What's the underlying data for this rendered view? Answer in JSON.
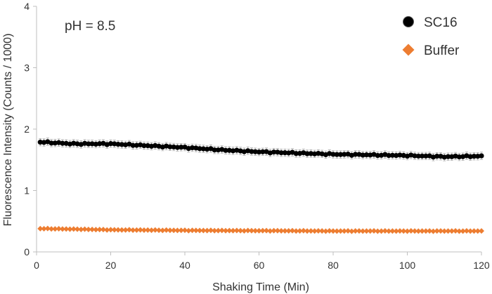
{
  "chart_data": {
    "type": "scatter",
    "annotation": "pH = 8.5",
    "xlabel": "Shaking Time (Min)",
    "ylabel": "Fluorescence Intensity (Counts / 1000)",
    "xlim": [
      0,
      120
    ],
    "ylim": [
      0,
      4
    ],
    "x_ticks": [
      "0",
      "20",
      "40",
      "60",
      "80",
      "100",
      "120"
    ],
    "y_ticks": [
      "0",
      "1",
      "2",
      "3",
      "4"
    ],
    "grid": false,
    "legend_position": "top-right",
    "sample_interval_min": 1,
    "series": [
      {
        "name": "SC16",
        "marker": "circle",
        "color": "#000000",
        "error_bars": true,
        "x_start": 1,
        "x_end": 120,
        "anchors": [
          [
            1,
            1.79
          ],
          [
            10,
            1.76
          ],
          [
            20,
            1.76
          ],
          [
            30,
            1.73
          ],
          [
            40,
            1.7
          ],
          [
            50,
            1.66
          ],
          [
            60,
            1.63
          ],
          [
            70,
            1.61
          ],
          [
            80,
            1.59
          ],
          [
            90,
            1.58
          ],
          [
            100,
            1.57
          ],
          [
            110,
            1.55
          ],
          [
            120,
            1.56
          ]
        ],
        "error": 0.06
      },
      {
        "name": "Buffer",
        "marker": "diamond",
        "color": "#ED7D31",
        "error_bars": false,
        "x_start": 1,
        "x_end": 120,
        "anchors": [
          [
            1,
            0.38
          ],
          [
            20,
            0.36
          ],
          [
            40,
            0.35
          ],
          [
            60,
            0.345
          ],
          [
            80,
            0.34
          ],
          [
            100,
            0.34
          ],
          [
            120,
            0.34
          ]
        ]
      }
    ]
  }
}
